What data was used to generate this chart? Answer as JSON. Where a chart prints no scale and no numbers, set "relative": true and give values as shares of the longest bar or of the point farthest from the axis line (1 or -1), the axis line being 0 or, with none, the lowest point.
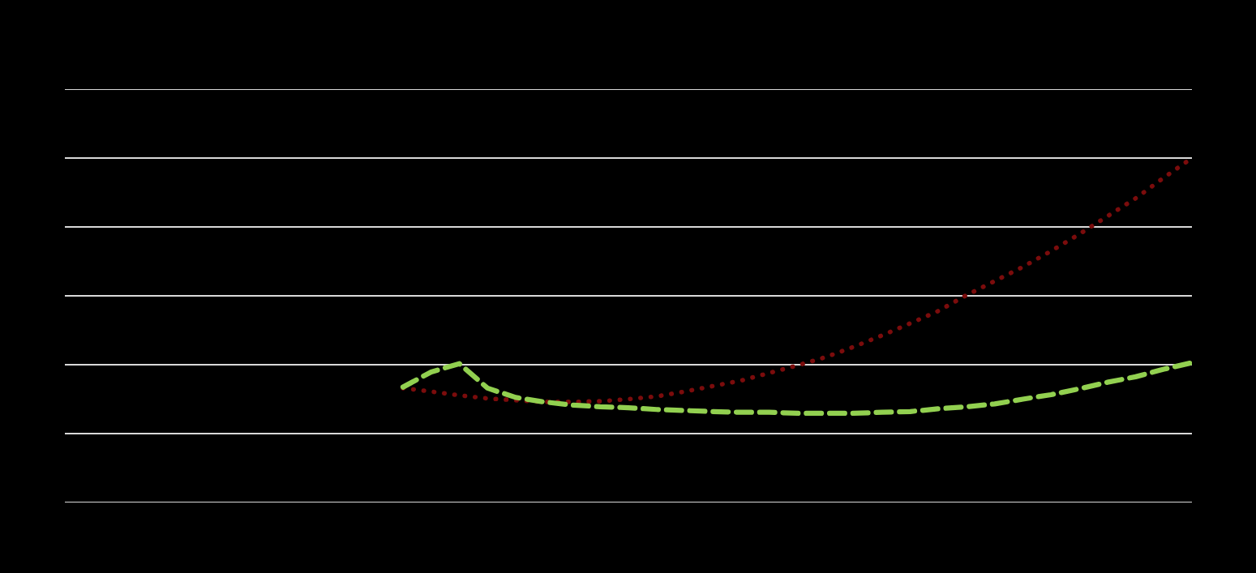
{
  "chart_data": {
    "type": "line",
    "relative": true,
    "grid": "y",
    "categories": [
      null,
      null,
      null,
      null,
      null,
      null,
      null,
      null,
      null,
      null,
      null,
      null,
      null,
      null,
      null,
      null,
      null,
      null,
      null,
      null,
      null,
      null,
      null,
      null,
      null,
      null,
      null,
      null,
      null,
      null,
      null,
      null,
      null,
      null,
      null,
      null,
      null,
      null,
      null,
      null,
      null
    ],
    "series": [
      {
        "color": "#7b0c0c",
        "line_style": "dotted",
        "values": [
          null,
          null,
          null,
          null,
          null,
          null,
          null,
          null,
          null,
          null,
          null,
          null,
          0.332,
          0.322,
          0.311,
          0.302,
          0.297,
          0.292,
          0.292,
          0.294,
          0.3,
          0.308,
          0.322,
          0.338,
          0.354,
          0.376,
          0.398,
          0.422,
          0.452,
          0.485,
          0.52,
          0.556,
          0.602,
          0.643,
          0.684,
          0.73,
          0.779,
          0.831,
          0.883,
          0.943,
          1.0
        ]
      },
      {
        "color": "#92d050",
        "line_style": "dashed",
        "values": [
          null,
          null,
          null,
          null,
          null,
          null,
          null,
          null,
          null,
          null,
          null,
          null,
          0.335,
          0.379,
          0.403,
          0.332,
          0.305,
          0.292,
          0.283,
          0.278,
          0.275,
          0.27,
          0.267,
          0.264,
          0.262,
          0.262,
          0.259,
          0.259,
          0.259,
          0.262,
          0.264,
          0.272,
          0.278,
          0.286,
          0.3,
          0.313,
          0.33,
          0.349,
          0.365,
          0.387,
          0.406
        ]
      }
    ]
  }
}
